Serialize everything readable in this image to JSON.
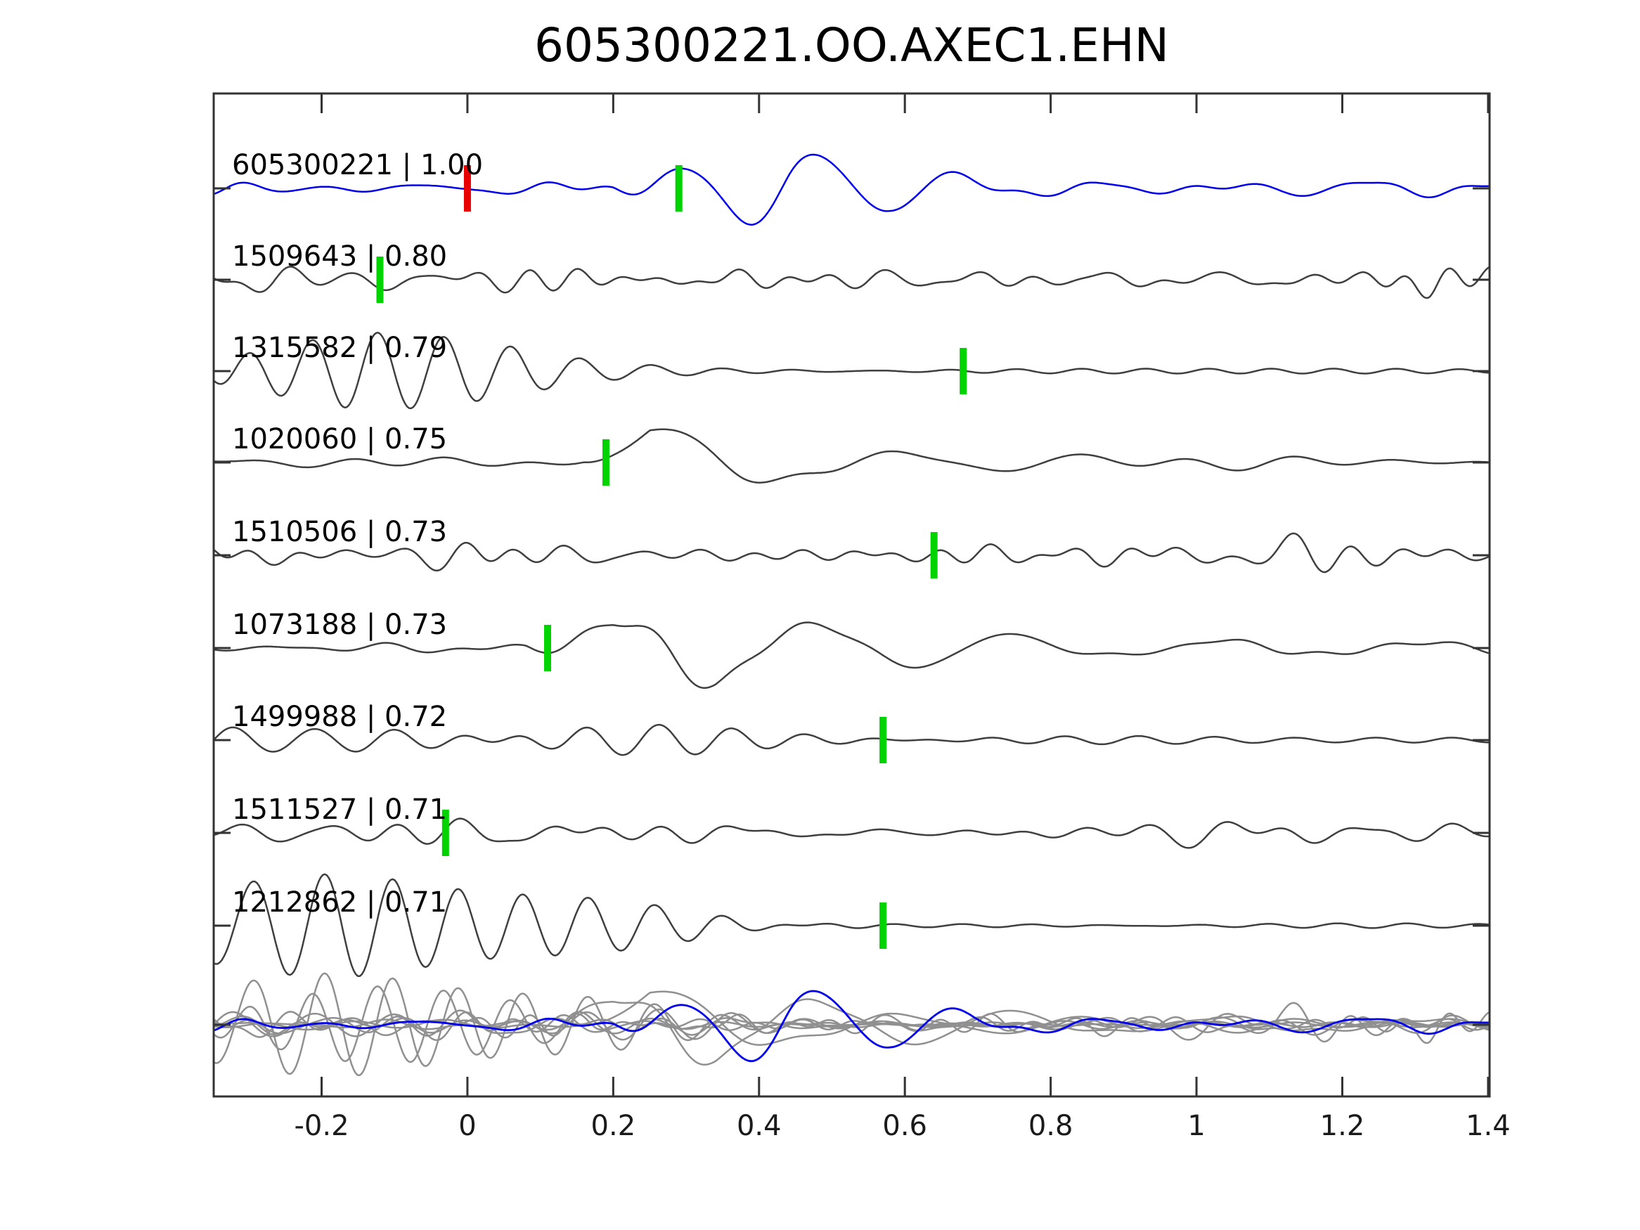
{
  "chart_data": {
    "type": "line",
    "subtype": "waveform-stack",
    "title": "605300221.OO.AXEC1.EHN",
    "xlim": [
      -0.348,
      1.402
    ],
    "x_ticks": [
      {
        "value": -0.2,
        "label": "-0.2"
      },
      {
        "value": 0.0,
        "label": "0"
      },
      {
        "value": 0.2,
        "label": "0.2"
      },
      {
        "value": 0.4,
        "label": "0.4"
      },
      {
        "value": 0.6,
        "label": "0.6"
      },
      {
        "value": 0.8,
        "label": "0.8"
      },
      {
        "value": 1.0,
        "label": "1"
      },
      {
        "value": 1.2,
        "label": "1.2"
      },
      {
        "value": 1.4,
        "label": "1.4"
      }
    ],
    "colors": {
      "template": "#0000ee",
      "match": "#3f3f3f",
      "overlay_gray": "#909090",
      "pick_green": "#00d400",
      "pick_red": "#e80000",
      "axis": "#333333",
      "text": "#000000"
    },
    "label_separator": " | ",
    "traces": [
      {
        "id": "605300221",
        "cc": "1.00",
        "is_template": true,
        "picks": [
          {
            "t": 0.0,
            "color": "red"
          },
          {
            "t": 0.29,
            "color": "green"
          }
        ],
        "seed": 11,
        "f0": 8.5,
        "band": [
          0.45,
          1.6
        ],
        "env": [
          [
            -0.35,
            13
          ],
          [
            0.2,
            13
          ],
          [
            0.3,
            11
          ],
          [
            0.9,
            10
          ],
          [
            1.4,
            11
          ]
        ],
        "osc": {
          "f": 5.2,
          "t0": 0.24,
          "env": [
            [
              0.2,
              0
            ],
            [
              0.33,
              38
            ],
            [
              0.44,
              58
            ],
            [
              0.58,
              30
            ],
            [
              0.8,
              10
            ],
            [
              1.1,
              4
            ],
            [
              1.4,
              3
            ]
          ]
        }
      },
      {
        "id": "1509643",
        "cc": "0.80",
        "is_template": false,
        "picks": [
          {
            "t": -0.12,
            "color": "green"
          }
        ],
        "seed": 22,
        "f0": 11.0,
        "band": [
          0.45,
          1.6
        ],
        "env": [
          [
            -0.35,
            16
          ],
          [
            -0.1,
            22
          ],
          [
            0.15,
            24
          ],
          [
            0.45,
            16
          ],
          [
            0.9,
            13
          ],
          [
            1.22,
            15
          ],
          [
            1.32,
            45
          ],
          [
            1.4,
            34
          ]
        ]
      },
      {
        "id": "1315582",
        "cc": "0.79",
        "is_template": false,
        "picks": [
          {
            "t": 0.68,
            "color": "green"
          }
        ],
        "seed": 33,
        "f0": 11.5,
        "band": [
          0.88,
          1.12
        ],
        "env": [
          [
            -0.35,
            52
          ],
          [
            -0.15,
            58
          ],
          [
            0.05,
            44
          ],
          [
            0.2,
            26
          ],
          [
            0.35,
            11
          ],
          [
            0.55,
            6
          ],
          [
            1.4,
            5
          ]
        ]
      },
      {
        "id": "1020060",
        "cc": "0.75",
        "is_template": false,
        "picks": [
          {
            "t": 0.19,
            "color": "green"
          }
        ],
        "seed": 44,
        "f0": 5.5,
        "band": [
          0.45,
          1.6
        ],
        "env": [
          [
            -0.35,
            7
          ],
          [
            0.05,
            10
          ],
          [
            0.17,
            9
          ],
          [
            0.3,
            6
          ],
          [
            0.5,
            13
          ],
          [
            0.75,
            14
          ],
          [
            1.1,
            11
          ],
          [
            1.4,
            12
          ]
        ],
        "osc": {
          "f": 3.0,
          "t0": 0.185,
          "env": [
            [
              0.16,
              0
            ],
            [
              0.25,
              52
            ],
            [
              0.38,
              34
            ],
            [
              0.55,
              8
            ],
            [
              0.8,
              0
            ],
            [
              1.4,
              0
            ]
          ]
        }
      },
      {
        "id": "1510506",
        "cc": "0.73",
        "is_template": false,
        "picks": [
          {
            "t": 0.64,
            "color": "green"
          }
        ],
        "seed": 55,
        "f0": 10.5,
        "band": [
          0.45,
          1.6
        ],
        "env": [
          [
            -0.35,
            20
          ],
          [
            -0.15,
            28
          ],
          [
            0.02,
            34
          ],
          [
            0.2,
            22
          ],
          [
            0.5,
            18
          ],
          [
            0.8,
            17
          ],
          [
            1.0,
            20
          ],
          [
            1.08,
            34
          ],
          [
            1.25,
            25
          ],
          [
            1.4,
            23
          ]
        ]
      },
      {
        "id": "1073188",
        "cc": "0.73",
        "is_template": false,
        "picks": [
          {
            "t": 0.11,
            "color": "green"
          }
        ],
        "seed": 66,
        "f0": 7.0,
        "band": [
          0.45,
          1.6
        ],
        "env": [
          [
            -0.35,
            12
          ],
          [
            0.0,
            14
          ],
          [
            0.3,
            12
          ],
          [
            0.7,
            11
          ],
          [
            1.4,
            11
          ]
        ],
        "osc": {
          "f": 3.6,
          "t0": 0.13,
          "env": [
            [
              0.08,
              0
            ],
            [
              0.2,
              42
            ],
            [
              0.34,
              50
            ],
            [
              0.55,
              26
            ],
            [
              0.85,
              10
            ],
            [
              1.4,
              4
            ]
          ]
        }
      },
      {
        "id": "1499988",
        "cc": "0.72",
        "is_template": false,
        "picks": [
          {
            "t": 0.57,
            "color": "green"
          }
        ],
        "seed": 77,
        "f0": 10.0,
        "band": [
          0.88,
          1.12
        ],
        "env": [
          [
            -0.35,
            38
          ],
          [
            -0.15,
            52
          ],
          [
            0.05,
            46
          ],
          [
            0.25,
            26
          ],
          [
            0.42,
            12
          ],
          [
            0.6,
            6
          ],
          [
            1.4,
            6
          ]
        ]
      },
      {
        "id": "1511527",
        "cc": "0.71",
        "is_template": false,
        "picks": [
          {
            "t": -0.03,
            "color": "green"
          }
        ],
        "seed": 88,
        "f0": 9.0,
        "band": [
          0.45,
          1.6
        ],
        "env": [
          [
            -0.35,
            16
          ],
          [
            -0.05,
            19
          ],
          [
            0.07,
            28
          ],
          [
            0.25,
            16
          ],
          [
            0.6,
            14
          ],
          [
            0.95,
            20
          ],
          [
            1.15,
            27
          ],
          [
            1.35,
            20
          ],
          [
            1.4,
            18
          ]
        ]
      },
      {
        "id": "1212862",
        "cc": "0.71",
        "is_template": false,
        "picks": [
          {
            "t": 0.57,
            "color": "green"
          }
        ],
        "seed": 99,
        "f0": 10.5,
        "band": [
          0.88,
          1.12
        ],
        "env": [
          [
            -0.35,
            85
          ],
          [
            -0.15,
            72
          ],
          [
            0.05,
            52
          ],
          [
            0.3,
            30
          ],
          [
            0.5,
            13
          ],
          [
            0.57,
            4
          ],
          [
            0.65,
            3
          ],
          [
            1.4,
            4
          ]
        ]
      }
    ],
    "overlay": {
      "description": "all matched traces superimposed in gray with template in blue",
      "gray": "#909090"
    },
    "layout_hints": {
      "plot_left": 304,
      "plot_right": 2119,
      "plot_top": 133,
      "plot_bottom": 1560,
      "row_baselines": [
        268,
        398,
        528,
        658,
        790,
        922,
        1053,
        1185,
        1317
      ],
      "overlay_baseline": 1458,
      "label_x": 330,
      "label_font_size": 40,
      "tick_font_size": 40,
      "tick_len_x": 28,
      "tick_len_y": 24,
      "pick_width": 10,
      "pick_height": 66,
      "grid": false,
      "legend": false
    }
  }
}
